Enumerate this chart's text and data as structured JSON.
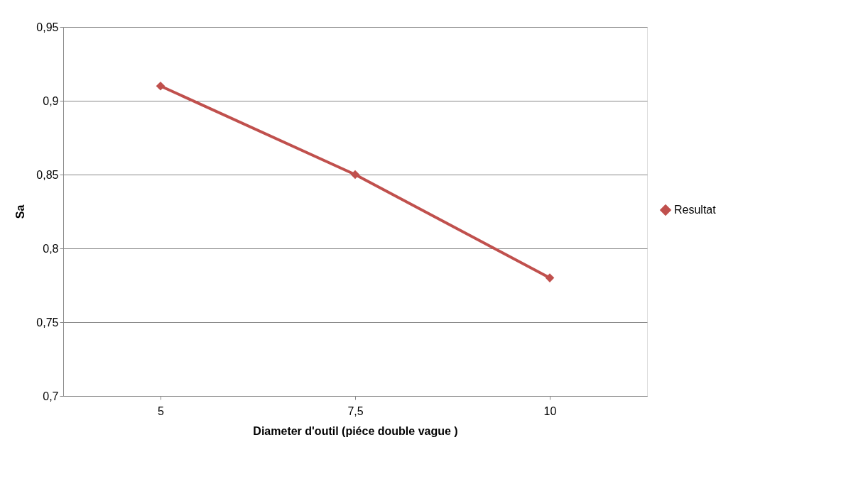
{
  "chart_data": {
    "type": "line",
    "xlabel": "Diameter d'outil (piéce double vague )",
    "ylabel": "Sa",
    "categories": [
      "5",
      "7,5",
      "10"
    ],
    "series": [
      {
        "name": "Resultat",
        "color": "#c0504d",
        "values": [
          0.91,
          0.85,
          0.78
        ]
      }
    ],
    "ylim": [
      0.7,
      0.95
    ],
    "yticks": [
      {
        "value": 0.7,
        "label": "0,7"
      },
      {
        "value": 0.75,
        "label": "0,75"
      },
      {
        "value": 0.8,
        "label": "0,8"
      },
      {
        "value": 0.85,
        "label": "0,85"
      },
      {
        "value": 0.9,
        "label": "0,9"
      },
      {
        "value": 0.95,
        "label": "0,95"
      }
    ],
    "grid": "y",
    "legend": "right",
    "marker": "diamond",
    "line_style": "solid"
  }
}
